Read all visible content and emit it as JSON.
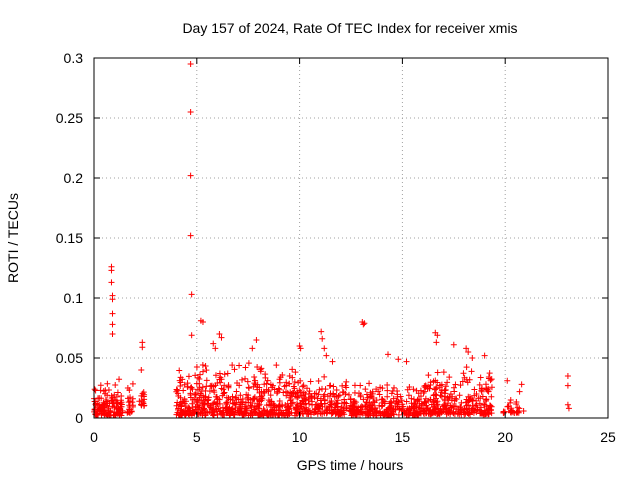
{
  "chart_data": {
    "type": "scatter",
    "title": "Day 157 of 2024, Rate Of TEC Index for receiver xmis",
    "xlabel": "GPS time / hours",
    "ylabel": "ROTI / TECUs",
    "xlim": [
      0,
      25
    ],
    "ylim": [
      0,
      0.3
    ],
    "x_ticks": [
      0,
      5,
      10,
      15,
      20,
      25
    ],
    "x_tick_labels": [
      "0",
      "5",
      "10",
      "15",
      "20",
      "25"
    ],
    "y_ticks": [
      0,
      0.05,
      0.1,
      0.15,
      0.2,
      0.25,
      0.3
    ],
    "y_tick_labels": [
      "0",
      "0.05",
      "0.1",
      "0.15",
      "0.2",
      "0.25",
      "0.3"
    ],
    "grid": true,
    "marker": "+",
    "color": "#ff0000",
    "series": [
      {
        "name": "ROTI",
        "points": [
          [
            4.7,
            0.295
          ],
          [
            4.7,
            0.255
          ],
          [
            4.7,
            0.202
          ],
          [
            4.7,
            0.152
          ],
          [
            4.75,
            0.103
          ],
          [
            4.75,
            0.069
          ],
          [
            0.85,
            0.126
          ],
          [
            0.85,
            0.123
          ],
          [
            0.85,
            0.113
          ],
          [
            0.9,
            0.102
          ],
          [
            0.9,
            0.099
          ],
          [
            0.9,
            0.087
          ],
          [
            0.9,
            0.078
          ],
          [
            0.9,
            0.07
          ],
          [
            2.35,
            0.063
          ],
          [
            2.35,
            0.059
          ],
          [
            2.3,
            0.04
          ],
          [
            5.2,
            0.081
          ],
          [
            5.3,
            0.08
          ],
          [
            13.05,
            0.08
          ],
          [
            13.1,
            0.078
          ],
          [
            13.15,
            0.079
          ],
          [
            11.05,
            0.072
          ],
          [
            11.1,
            0.066
          ],
          [
            11.2,
            0.058
          ],
          [
            11.3,
            0.052
          ],
          [
            16.6,
            0.071
          ],
          [
            16.7,
            0.069
          ],
          [
            16.65,
            0.063
          ],
          [
            10.0,
            0.06
          ],
          [
            10.05,
            0.058
          ],
          [
            6.1,
            0.07
          ],
          [
            6.2,
            0.067
          ],
          [
            5.8,
            0.062
          ],
          [
            5.9,
            0.058
          ],
          [
            7.9,
            0.065
          ],
          [
            7.7,
            0.058
          ],
          [
            17.5,
            0.061
          ],
          [
            18.1,
            0.058
          ],
          [
            18.2,
            0.055
          ],
          [
            19.0,
            0.052
          ],
          [
            18.4,
            0.05
          ],
          [
            14.3,
            0.053
          ],
          [
            14.8,
            0.049
          ],
          [
            15.2,
            0.047
          ],
          [
            11.6,
            0.047
          ],
          [
            20.1,
            0.031
          ],
          [
            20.8,
            0.028
          ],
          [
            20.7,
            0.022
          ],
          [
            23.05,
            0.035
          ],
          [
            23.05,
            0.027
          ],
          [
            23.05,
            0.011
          ],
          [
            23.1,
            0.008
          ]
        ],
        "clusters": [
          {
            "x_range": [
              0.0,
              1.4
            ],
            "y_range": [
              0.002,
              0.035
            ],
            "count": 130
          },
          {
            "x_range": [
              1.6,
              1.9
            ],
            "y_range": [
              0.004,
              0.032
            ],
            "count": 22
          },
          {
            "x_range": [
              2.2,
              2.5
            ],
            "y_range": [
              0.01,
              0.03
            ],
            "count": 14
          },
          {
            "x_range": [
              4.0,
              9.8
            ],
            "y_range": [
              0.002,
              0.05
            ],
            "count": 520
          },
          {
            "x_range": [
              9.8,
              12.3
            ],
            "y_range": [
              0.003,
              0.038
            ],
            "count": 200
          },
          {
            "x_range": [
              12.4,
              15.8
            ],
            "y_range": [
              0.002,
              0.03
            ],
            "count": 260
          },
          {
            "x_range": [
              15.8,
              19.4
            ],
            "y_range": [
              0.003,
              0.045
            ],
            "count": 300
          },
          {
            "x_range": [
              19.9,
              20.9
            ],
            "y_range": [
              0.004,
              0.018
            ],
            "count": 30
          }
        ]
      }
    ]
  }
}
